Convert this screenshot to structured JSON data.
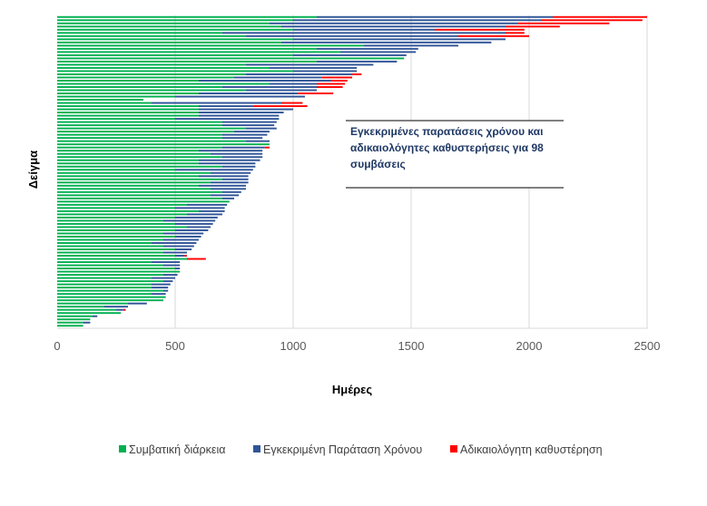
{
  "chart_data": {
    "type": "bar",
    "orientation": "horizontal",
    "stacked": true,
    "title": "",
    "xlabel": "Ημέρες",
    "ylabel": "Δείγμα",
    "xlim": [
      0,
      2500
    ],
    "xticks": [
      "0",
      "500",
      "1000",
      "1500",
      "2000",
      "2500"
    ],
    "grid": "vertical",
    "legend_position": "bottom",
    "annotation": "Εγκεκριμένες παρατάσεις χρόνου και αδικαιολόγητες καθυστερήσεις για 98 συμβάσεις",
    "series": [
      {
        "name": "Συμβατική διάρκεια",
        "color": "#00b050"
      },
      {
        "name": "Εγκεκριμένη Παράταση Χρόνου",
        "color": "#2f5597"
      },
      {
        "name": "Αδικαιολόγητη  καθυστέρηση",
        "color": "#ff0000"
      }
    ],
    "samples": [
      [
        1100,
        1000,
        400
      ],
      [
        1000,
        1050,
        430
      ],
      [
        900,
        1050,
        390
      ],
      [
        950,
        950,
        230
      ],
      [
        1000,
        600,
        380
      ],
      [
        700,
        1200,
        80
      ],
      [
        800,
        900,
        300
      ],
      [
        1000,
        900,
        0
      ],
      [
        950,
        890,
        0
      ],
      [
        1300,
        400,
        0
      ],
      [
        1100,
        430,
        0
      ],
      [
        1200,
        320,
        0
      ],
      [
        1000,
        480,
        0
      ],
      [
        1470,
        0,
        0
      ],
      [
        1100,
        340,
        0
      ],
      [
        800,
        540,
        0
      ],
      [
        900,
        370,
        0
      ],
      [
        1000,
        270,
        0
      ],
      [
        800,
        450,
        40
      ],
      [
        750,
        370,
        130
      ],
      [
        600,
        560,
        70
      ],
      [
        900,
        200,
        120
      ],
      [
        700,
        400,
        110
      ],
      [
        800,
        300,
        0
      ],
      [
        600,
        420,
        150
      ],
      [
        500,
        550,
        0
      ],
      [
        365,
        0,
        0
      ],
      [
        400,
        550,
        90
      ],
      [
        600,
        230,
        230
      ],
      [
        600,
        400,
        0
      ],
      [
        600,
        360,
        0
      ],
      [
        600,
        340,
        0
      ],
      [
        500,
        440,
        0
      ],
      [
        700,
        230,
        0
      ],
      [
        700,
        220,
        0
      ],
      [
        800,
        130,
        0
      ],
      [
        750,
        150,
        0
      ],
      [
        700,
        190,
        0
      ],
      [
        700,
        170,
        0
      ],
      [
        800,
        100,
        0
      ],
      [
        900,
        0,
        0
      ],
      [
        700,
        180,
        20
      ],
      [
        600,
        270,
        0
      ],
      [
        650,
        220,
        0
      ],
      [
        700,
        170,
        0
      ],
      [
        600,
        260,
        0
      ],
      [
        600,
        240,
        0
      ],
      [
        700,
        140,
        0
      ],
      [
        500,
        330,
        0
      ],
      [
        650,
        170,
        0
      ],
      [
        600,
        210,
        0
      ],
      [
        700,
        110,
        0
      ],
      [
        650,
        160,
        0
      ],
      [
        600,
        200,
        0
      ],
      [
        650,
        150,
        0
      ],
      [
        700,
        80,
        0
      ],
      [
        650,
        120,
        0
      ],
      [
        700,
        50,
        0
      ],
      [
        730,
        0,
        0
      ],
      [
        550,
        170,
        0
      ],
      [
        500,
        210,
        0
      ],
      [
        600,
        110,
        0
      ],
      [
        550,
        150,
        0
      ],
      [
        500,
        180,
        0
      ],
      [
        450,
        220,
        0
      ],
      [
        500,
        160,
        0
      ],
      [
        550,
        100,
        0
      ],
      [
        500,
        140,
        0
      ],
      [
        450,
        170,
        0
      ],
      [
        500,
        110,
        0
      ],
      [
        450,
        150,
        0
      ],
      [
        400,
        190,
        0
      ],
      [
        450,
        130,
        0
      ],
      [
        500,
        70,
        0
      ],
      [
        450,
        100,
        0
      ],
      [
        500,
        40,
        10
      ],
      [
        550,
        0,
        80
      ],
      [
        400,
        120,
        0
      ],
      [
        450,
        70,
        0
      ],
      [
        500,
        20,
        0
      ],
      [
        520,
        0,
        0
      ],
      [
        450,
        60,
        0
      ],
      [
        400,
        100,
        0
      ],
      [
        450,
        40,
        0
      ],
      [
        400,
        80,
        0
      ],
      [
        400,
        70,
        0
      ],
      [
        450,
        20,
        0
      ],
      [
        400,
        60,
        0
      ],
      [
        460,
        0,
        0
      ],
      [
        450,
        0,
        0
      ],
      [
        300,
        80,
        0
      ],
      [
        200,
        100,
        0
      ],
      [
        250,
        30,
        10
      ],
      [
        270,
        0,
        0
      ],
      [
        150,
        20,
        0
      ],
      [
        140,
        0,
        0
      ],
      [
        110,
        30,
        0
      ],
      [
        110,
        0,
        0
      ]
    ]
  }
}
